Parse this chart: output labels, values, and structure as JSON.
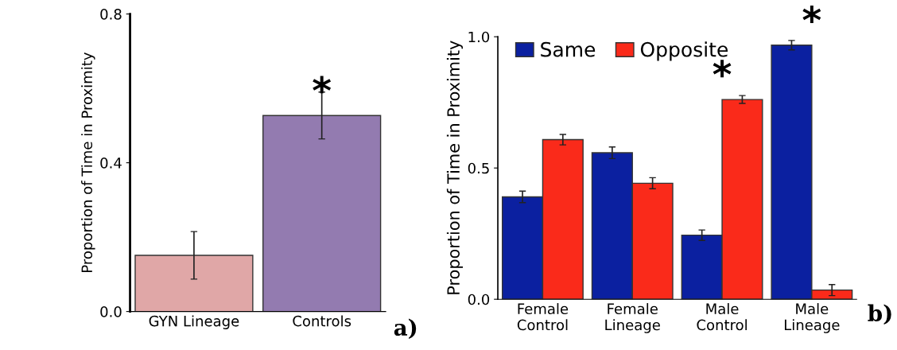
{
  "chart_data": [
    {
      "type": "bar",
      "ylabel": "Proportion of Time in Proximity",
      "categories": [
        "GYN Lineage",
        "Controls"
      ],
      "values": [
        0.151,
        0.527
      ],
      "colors": [
        "#e0a7a7",
        "#937bb0"
      ],
      "errors": [
        0.064,
        0.063
      ],
      "ylim": [
        0,
        0.8
      ],
      "yticks": [
        {
          "value": 0,
          "label": "0.0"
        },
        0.4,
        0.8
      ],
      "grid": false,
      "legend": false,
      "annotations": [
        {
          "text": "*",
          "x": "Controls",
          "y": 0.527
        },
        "a)"
      ]
    },
    {
      "type": "bar",
      "ylabel": "Proportion of Time in Proximity",
      "categories": [
        "Female\nControl",
        "Female\nLineage",
        "Male\nControl",
        "Male\nLineage"
      ],
      "series": [
        {
          "name": "Same",
          "color": "#0b20a0",
          "values": [
            0.39,
            0.558,
            0.244,
            0.968
          ],
          "errors": [
            0.022,
            0.022,
            0.02,
            0.018
          ]
        },
        {
          "name": "Opposite",
          "color": "#fa2a1a",
          "values": [
            0.608,
            0.442,
            0.761,
            0.035
          ],
          "errors": [
            0.02,
            0.021,
            0.015,
            0.021
          ]
        }
      ],
      "ylim": [
        0,
        1.0
      ],
      "yticks": [
        {
          "value": 0,
          "label": "0.0"
        },
        {
          "value": 0.5,
          "label": "0.5"
        },
        {
          "value": 1.0,
          "label": "1.0"
        }
      ],
      "grid": false,
      "legend": "top left",
      "annotations": [
        {
          "text": "*",
          "x": "Male\nControl",
          "y": 0.761
        },
        {
          "text": "*",
          "x": "Male\nLineage",
          "y": 0.968
        },
        "b)"
      ]
    }
  ]
}
